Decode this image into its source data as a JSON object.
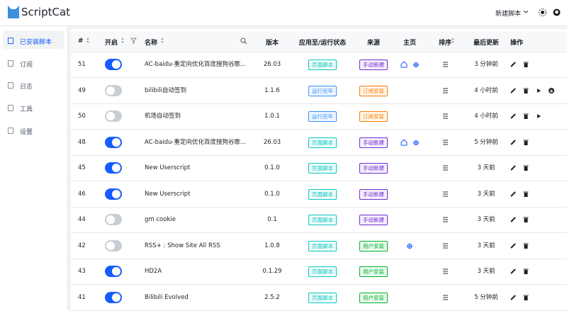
{
  "header": {
    "title": "ScriptCat",
    "new_script": "新建脚本"
  },
  "sidebar": {
    "items": [
      "已安装脚本",
      "订阅",
      "日志",
      "工具",
      "设置"
    ],
    "active": 0
  },
  "table": {
    "columns": [
      "#",
      "开启",
      "名称",
      "版本",
      "应用至/运行状态",
      "来源",
      "主页",
      "排序",
      "最后更新",
      "操作"
    ],
    "rows": [
      {
        "id": 51,
        "enabled": true,
        "name": "AC-baidu-重定向优化百度搜狗谷歌...",
        "version": "26.03",
        "status": {
          "text": "页面脚本",
          "color": "#0fc6c2"
        },
        "source": {
          "text": "手动新建",
          "color": "#722ed1"
        },
        "updated": "3 分钟前"
      },
      {
        "id": 49,
        "enabled": false,
        "name": "bilibili自动签到",
        "version": "1.1.6",
        "status": {
          "text": "运行完毕",
          "color": "#3491fa"
        },
        "source": {
          "text": "订阅安装",
          "color": "#ff7d00"
        },
        "updated": "4 小时前"
      },
      {
        "id": 50,
        "enabled": false,
        "name": "机场自动签到",
        "version": "1.0.1",
        "status": {
          "text": "运行完毕",
          "color": "#3491fa"
        },
        "source": {
          "text": "订阅安装",
          "color": "#ff7d00"
        },
        "updated": "4 小时前"
      },
      {
        "id": 48,
        "enabled": true,
        "name": "AC-baidu-重定向优化百度搜狗谷歌...",
        "version": "26.03",
        "status": {
          "text": "页面脚本",
          "color": "#0fc6c2"
        },
        "source": {
          "text": "手动新建",
          "color": "#722ed1"
        },
        "updated": "5 分钟前"
      },
      {
        "id": 45,
        "enabled": true,
        "name": "New Userscript",
        "version": "0.1.0",
        "status": {
          "text": "页面脚本",
          "color": "#0fc6c2"
        },
        "source": {
          "text": "手动新建",
          "color": "#722ed1"
        },
        "updated": "3 天前"
      },
      {
        "id": 46,
        "enabled": true,
        "name": "New Userscript",
        "version": "0.1.0",
        "status": {
          "text": "页面脚本",
          "color": "#0fc6c2"
        },
        "source": {
          "text": "手动新建",
          "color": "#722ed1"
        },
        "updated": "3 天前"
      },
      {
        "id": 44,
        "enabled": false,
        "name": "gm cookie",
        "version": "0.1",
        "status": {
          "text": "页面脚本",
          "color": "#0fc6c2"
        },
        "source": {
          "text": "手动新建",
          "color": "#722ed1"
        },
        "updated": "3 天前"
      },
      {
        "id": 42,
        "enabled": false,
        "name": "RSS+ : Show Site All RSS",
        "version": "1.0.8",
        "status": {
          "text": "页面脚本",
          "color": "#0fc6c2"
        },
        "source": {
          "text": "用户安装",
          "color": "#00b42a"
        },
        "updated": "3 天前"
      },
      {
        "id": 43,
        "enabled": true,
        "name": "HD2A",
        "version": "0.1.29",
        "status": {
          "text": "页面脚本",
          "color": "#0fc6c2"
        },
        "source": {
          "text": "用户安装",
          "color": "#00b42a"
        },
        "updated": "3 天前"
      },
      {
        "id": 41,
        "enabled": true,
        "name": "Bilibili Evolved",
        "version": "2.5.2",
        "status": {
          "text": "页面脚本",
          "color": "#0fc6c2"
        },
        "source": {
          "text": "用户安装",
          "color": "#00b42a"
        },
        "updated": "5 分钟前"
      }
    ]
  }
}
